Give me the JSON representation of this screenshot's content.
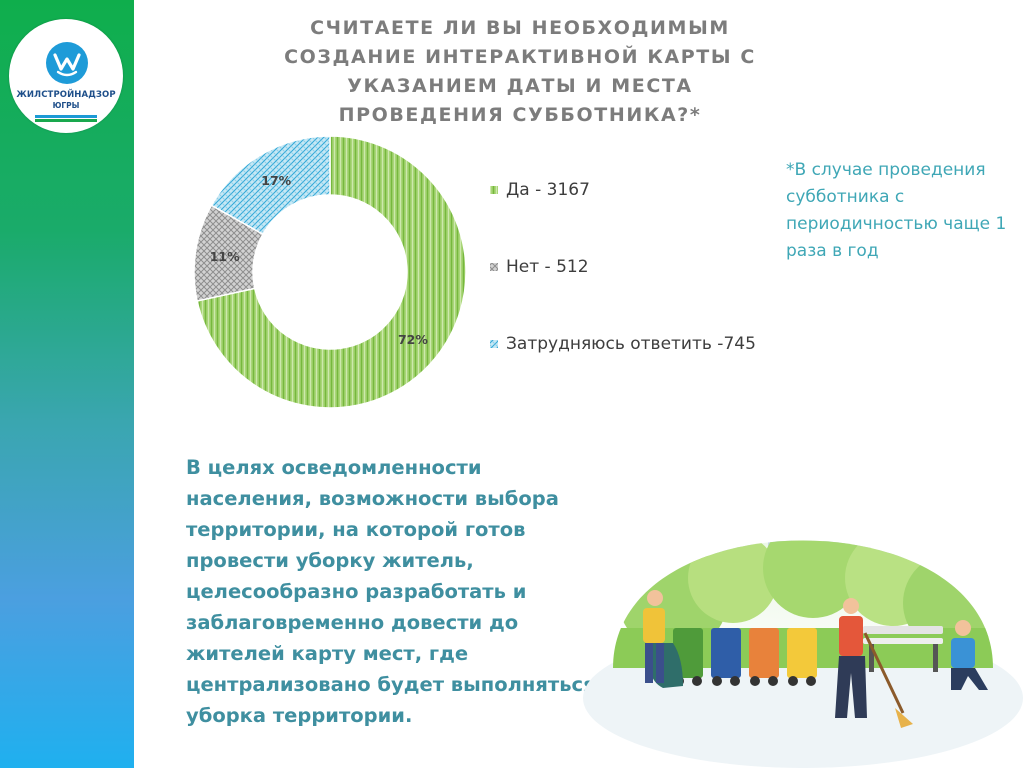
{
  "logo": {
    "line1": "ЖИЛСТРОЙНАДЗОР",
    "line2": "ЮГРЫ"
  },
  "title": "СЧИТАЕТЕ ЛИ ВЫ НЕОБХОДИМЫМ СОЗДАНИЕ ИНТЕРАКТИВНОЙ КАРТЫ С УКАЗАНИЕМ ДАТЫ И МЕСТА ПРОВЕДЕНИЯ СУББОТНИКА?*",
  "chart_data": {
    "type": "pie",
    "variant": "donut",
    "labels": [
      "Да",
      "Нет",
      "Затрудняюсь ответить"
    ],
    "values": [
      3167,
      512,
      745
    ],
    "percent_labels": [
      "72%",
      "11%",
      "17%"
    ],
    "legend_entries": [
      "Да - 3167",
      "Нет - 512",
      "Затрудняюсь ответить -745"
    ],
    "colors": [
      "#8fcb4e",
      "#a8a8a8",
      "#3cb1dc"
    ],
    "legend_position": "right"
  },
  "footnote": "*В случае проведения субботника с периодичностью чаще 1 раза в год",
  "body_text": "В целях осведомленности населения, возможности выбора территории, на которой готов провести уборку житель, целесообразно разработать и заблаговременно довести до жителей карту мест, где централизовано будет выполняться уборка территории."
}
